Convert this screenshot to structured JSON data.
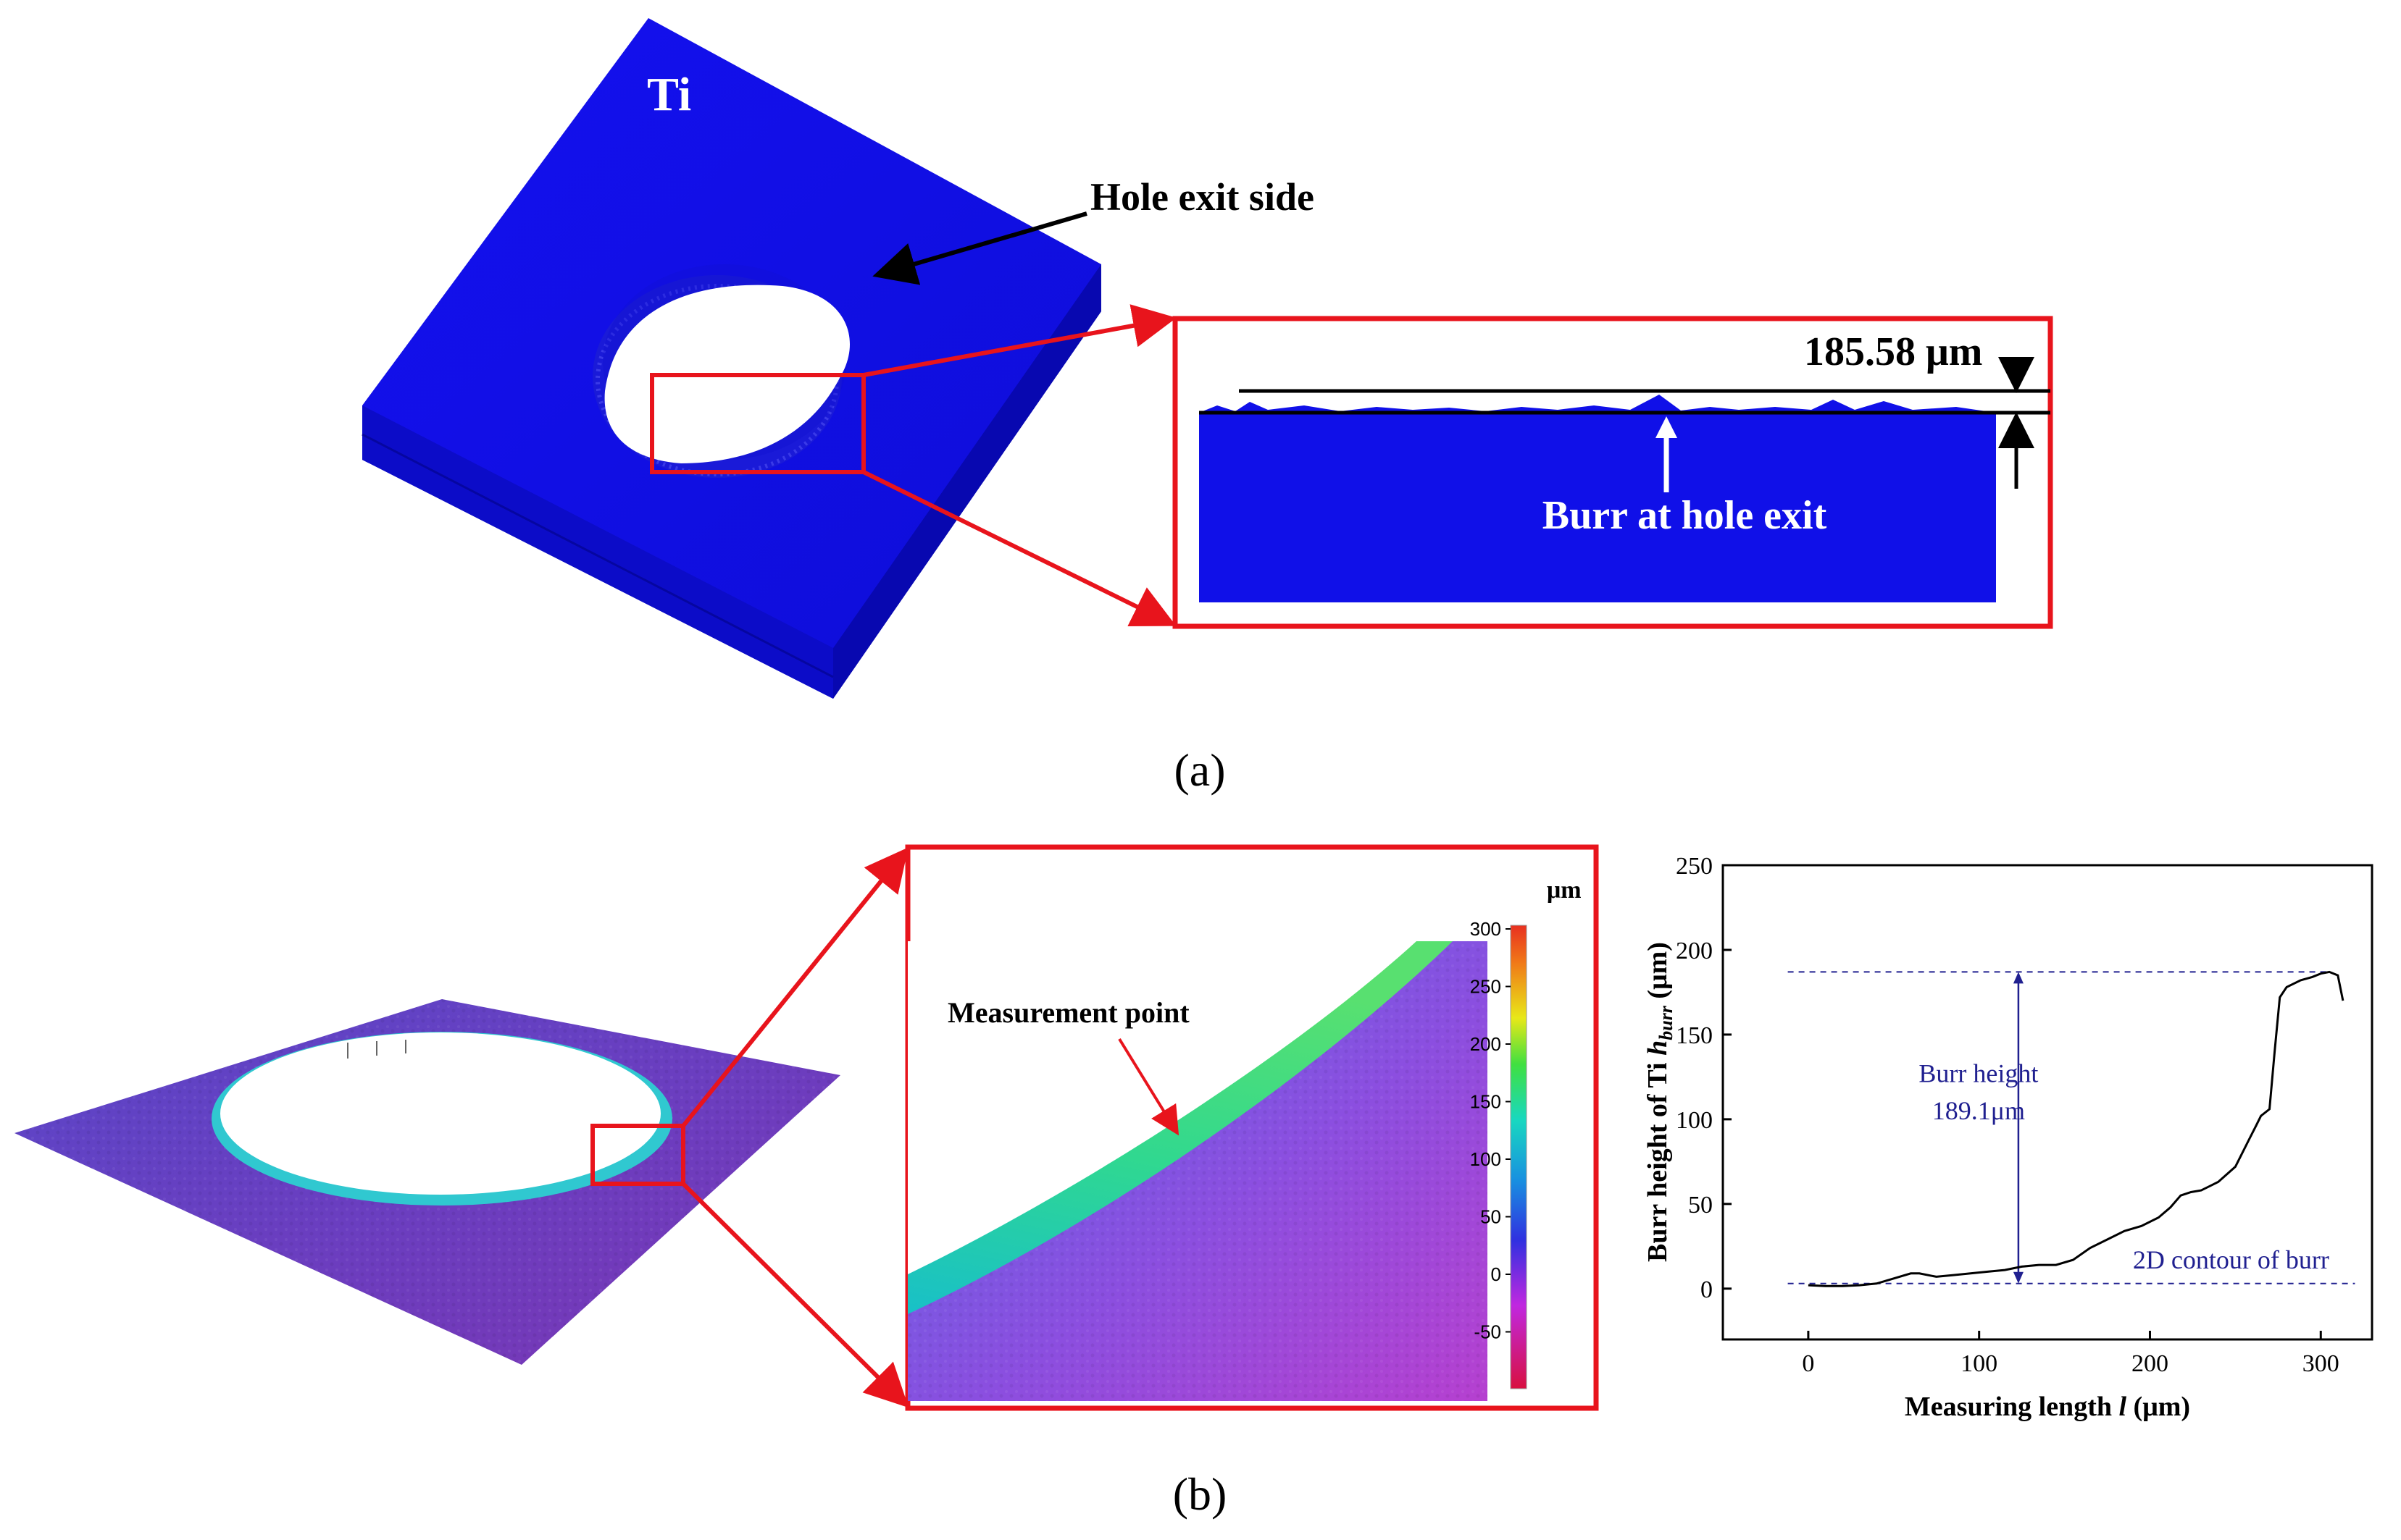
{
  "panel_a": {
    "material_label": "Ti",
    "hole_annotation": "Hole exit side",
    "burr_height_measurement": "185.58 μm",
    "burr_annotation": "Burr at hole exit",
    "caption_letter": "a"
  },
  "panel_b": {
    "measurement_point_label": "Measurement point",
    "colorbar": {
      "unit": "μm",
      "ticks": [
        "300",
        "250",
        "200",
        "150",
        "100",
        "50",
        "0",
        "-50"
      ]
    },
    "caption_letter": "b"
  },
  "colors": {
    "ti_blue": "#1010e8",
    "zoom_frame_red": "#e8141c",
    "chart_annotation_blue": "#202090"
  },
  "chart_data": {
    "type": "line",
    "title": "",
    "xlabel": "Measuring length l (μm)",
    "ylabel": "Burr height of Ti h_burr (μm)",
    "xlim": [
      -50,
      330
    ],
    "ylim": [
      -30,
      250
    ],
    "x_ticks": [
      0,
      100,
      200,
      300
    ],
    "y_ticks": [
      0,
      50,
      100,
      150,
      200,
      250
    ],
    "grid": false,
    "series": [
      {
        "x": [
          0,
          10,
          20,
          30,
          40,
          50,
          60,
          65,
          75,
          85,
          95,
          105,
          115,
          125,
          135,
          145,
          155,
          165,
          175,
          185,
          195,
          205,
          212,
          218,
          224,
          230,
          240,
          250,
          258,
          262,
          265,
          270,
          273,
          276,
          280,
          288,
          295,
          300,
          305,
          310,
          313
        ],
        "y": [
          2,
          1.5,
          1.5,
          2,
          3,
          6,
          9,
          9,
          7,
          8,
          9,
          10,
          11,
          13,
          14,
          14,
          17,
          24,
          29,
          34,
          37,
          42,
          48,
          55,
          57,
          58,
          63,
          72,
          88,
          96,
          102,
          106,
          140,
          172,
          178,
          182,
          184,
          186,
          187,
          185,
          170
        ]
      }
    ],
    "annotations": [
      {
        "text_line1": "Burr height",
        "text_line2": "189.1μm",
        "level_high": 187,
        "level_low": 3
      },
      {
        "text": "2D contour of burr"
      }
    ]
  }
}
